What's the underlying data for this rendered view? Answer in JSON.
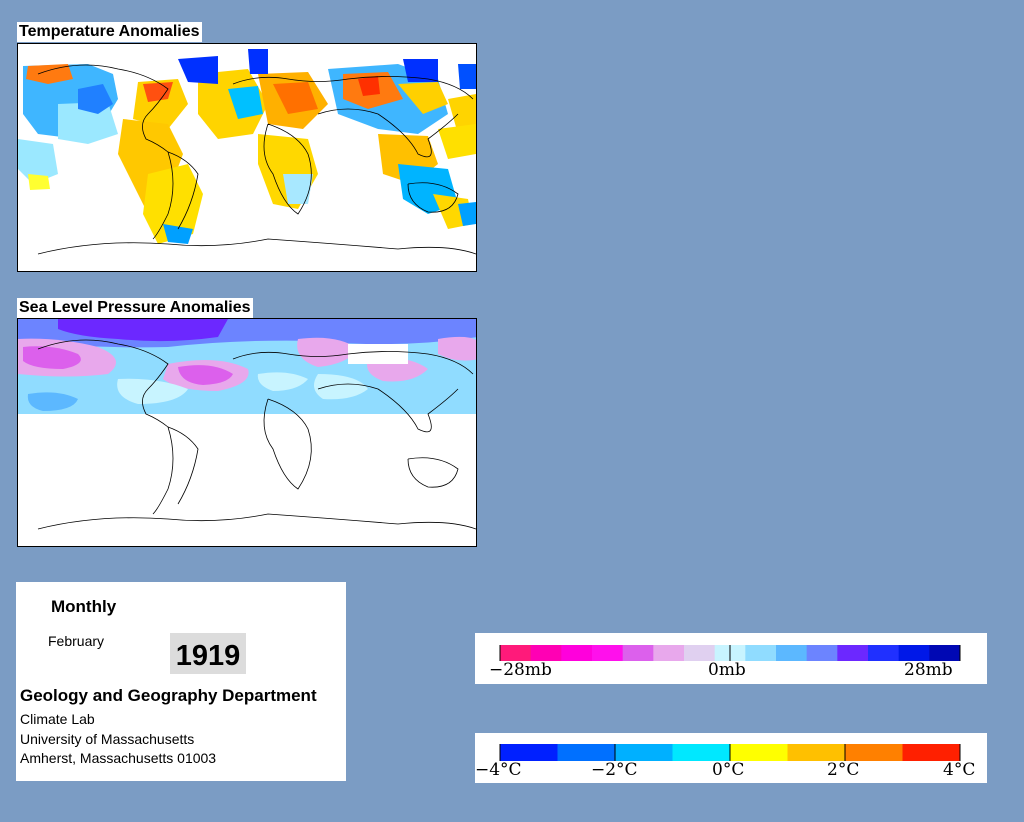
{
  "temperature_map": {
    "title": "Temperature Anomalies"
  },
  "pressure_map": {
    "title": "Sea Level Pressure Anomalies"
  },
  "info": {
    "period": "Monthly",
    "month": "February",
    "year": "1919",
    "department": "Geology and Geography Department",
    "lab": "Climate Lab",
    "university": "University of Massachusetts",
    "address": "Amherst, Massachusetts 01003"
  },
  "pressure_legend": {
    "colors": [
      "#ff1a7a",
      "#ff00b4",
      "#ff00dc",
      "#ff10ec",
      "#dc60ec",
      "#e8a8ec",
      "#e0d0f0",
      "#c8f4ff",
      "#90dcff",
      "#5cb8ff",
      "#6c84ff",
      "#6c28ff",
      "#2030ff",
      "#0018e8",
      "#0008b4"
    ],
    "labels": [
      "−28mb",
      "0mb",
      "28mb"
    ]
  },
  "temperature_legend": {
    "colors": [
      "#0020ff",
      "#0070ff",
      "#00b0ff",
      "#00e8ff",
      "#ffff00",
      "#ffc000",
      "#ff8000",
      "#ff2000"
    ],
    "labels": [
      "−4°C",
      "−2°C",
      "0°C",
      "2°C",
      "4°C"
    ]
  }
}
